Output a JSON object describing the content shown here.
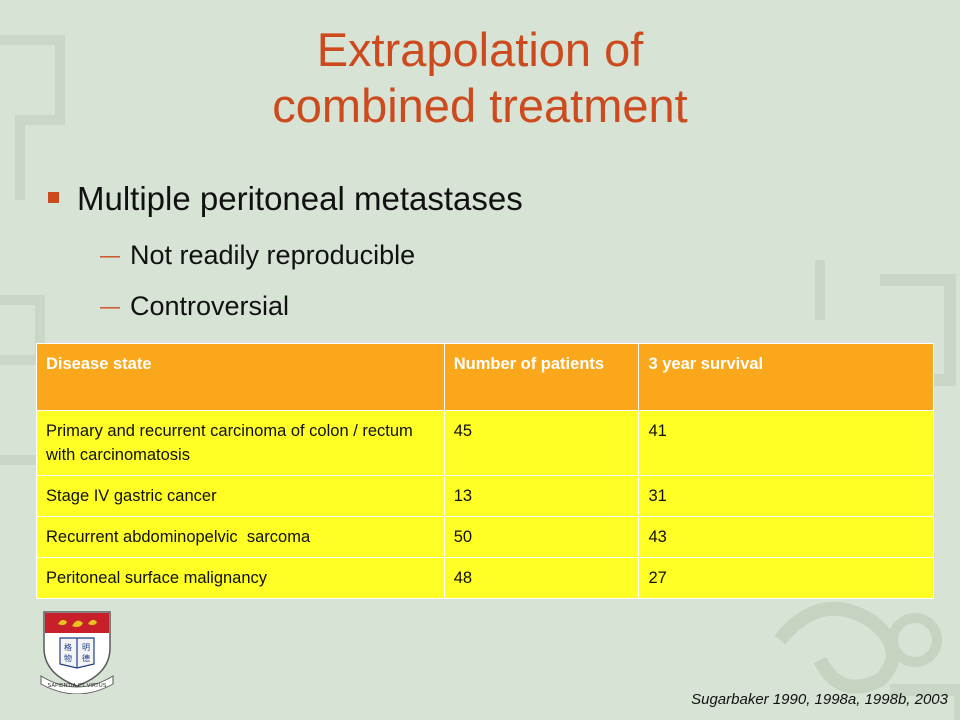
{
  "slide": {
    "title_line1": "Extrapolation of",
    "title_line2": "combined treatment",
    "bullet": "Multiple peritoneal metastases",
    "sub_bullets": [
      "Not readily reproducible",
      "Controversial"
    ],
    "sub_bullet_marker": "—",
    "citation": "Sugarbaker 1990, 1998a, 1998b, 2003"
  },
  "table": {
    "headers": [
      "Disease state",
      "Number of patients",
      "3 year survival"
    ],
    "rows": [
      [
        "Primary and recurrent carcinoma of colon / rectum with carcinomatosis",
        "45",
        "41"
      ],
      [
        "Stage IV gastric cancer",
        "13",
        "31"
      ],
      [
        "Recurrent abdominopelvic  sarcoma",
        "50",
        "43"
      ],
      [
        "Peritoneal surface malignancy",
        "48",
        "27"
      ]
    ]
  },
  "crest": {
    "motto": "SAPIENTIA ET VIRTUS",
    "book_chars": [
      "明",
      "德",
      "格",
      "物"
    ]
  },
  "colors": {
    "background": "#d7e3d5",
    "title": "#cc4a1e",
    "table_header": "#fba71b",
    "table_body": "#ffff26"
  }
}
